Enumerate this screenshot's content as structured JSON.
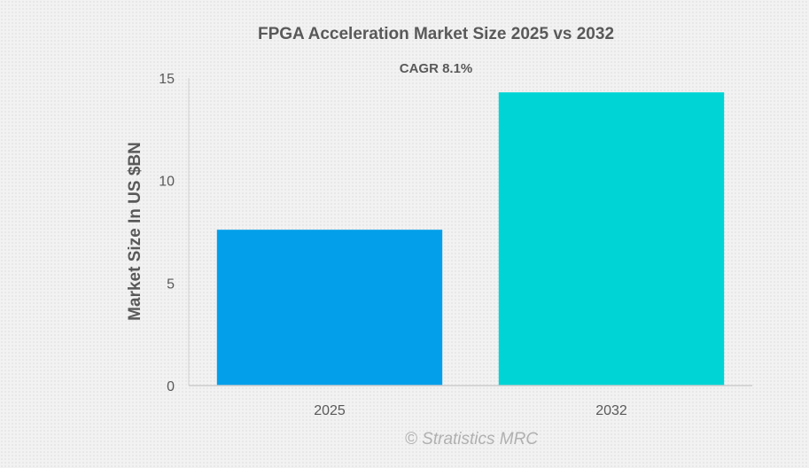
{
  "chart_data": {
    "type": "bar",
    "title": "FPGA Acceleration Market Size 2025 vs 2032",
    "subtitle": "CAGR 8.1%",
    "xlabel": "",
    "ylabel": "Market Size In US $BN",
    "categories": [
      "2025",
      "2032"
    ],
    "values": [
      7.6,
      14.3
    ],
    "ylim": [
      0,
      15
    ],
    "yticks": [
      0,
      5,
      10,
      15
    ],
    "colors": [
      "#039fea",
      "#00d4d4"
    ],
    "grid": false,
    "legend": "none"
  },
  "watermark": "© Stratistics MRC"
}
